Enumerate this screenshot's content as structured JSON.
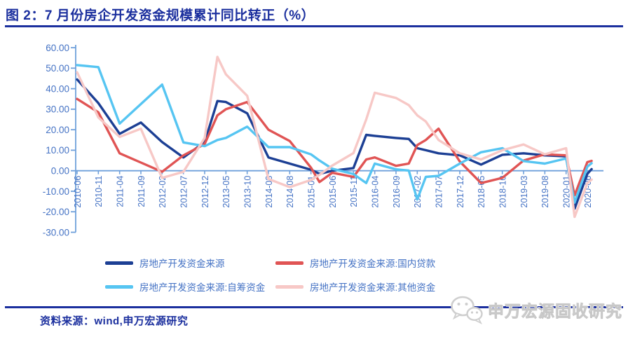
{
  "title": "图 2：7 月份房企开发资金规模累计同比转正（%）",
  "source_note": "资料来源：wind,申万宏源研究",
  "watermark_text": "申万宏源固收研究",
  "colors": {
    "navy_accent": "#1B2F9E",
    "axis_label_blue": "#4472C4",
    "axis_line_blue": "#6FA0DB",
    "watermark_gray": "#DADADA"
  },
  "chart_data": {
    "type": "line",
    "title": "7 月份房企开发资金规模累计同比转正（%）",
    "xlabel": "",
    "ylabel": "",
    "ylim": [
      -30,
      60
    ],
    "grid": false,
    "legend_position": "bottom",
    "y_ticks": [
      "60.00",
      "50.00",
      "40.00",
      "30.00",
      "20.00",
      "10.00",
      "0.00",
      "-10.00",
      "-20.00",
      "-30.00"
    ],
    "x_ticks": [
      "2010-06",
      "2010-11",
      "2011-04",
      "2011-09",
      "2012-02",
      "2012-07",
      "2012-12",
      "2013-05",
      "2013-10",
      "2014-03",
      "2014-08",
      "2015-01",
      "2015-06",
      "2015-11",
      "2016-04",
      "2016-09",
      "2017-02",
      "2017-07",
      "2017-12",
      "2018-05",
      "2018-10",
      "2019-03",
      "2019-08",
      "2020-01",
      "2020-06"
    ],
    "x": [
      "2010-06",
      "2010-11",
      "2011-04",
      "2011-09",
      "2012-02",
      "2012-07",
      "2012-12",
      "2013-03",
      "2013-05",
      "2013-10",
      "2014-03",
      "2014-08",
      "2015-01",
      "2015-03",
      "2015-06",
      "2015-11",
      "2016-02",
      "2016-04",
      "2016-09",
      "2016-12",
      "2017-02",
      "2017-04",
      "2017-07",
      "2017-12",
      "2018-05",
      "2018-10",
      "2019-03",
      "2019-08",
      "2020-01",
      "2020-03",
      "2020-06",
      "2020-07"
    ],
    "series": [
      {
        "name": "房地产开发资金来源",
        "color": "#1C3F94",
        "values": [
          44.5,
          33,
          18,
          23.5,
          14,
          6.5,
          14,
          34,
          33.5,
          28,
          6.5,
          3.5,
          0.5,
          -1.5,
          0,
          1.3,
          17.5,
          17,
          16,
          15.5,
          11,
          10,
          8.5,
          7.5,
          3,
          7.8,
          8.5,
          7.5,
          7,
          -18.5,
          -1.5,
          0.8
        ]
      },
      {
        "name": "房地产开发资金来源:国内贷款",
        "color": "#E05454",
        "values": [
          35,
          28.5,
          8.5,
          4,
          -0.5,
          7.5,
          13,
          27,
          30,
          33.5,
          20,
          14.5,
          1.5,
          -5.5,
          -1,
          -3,
          5.5,
          6.5,
          2.4,
          3.5,
          12.5,
          15,
          20.5,
          4.5,
          -6,
          -3.5,
          5,
          8,
          7.5,
          -12,
          4.2,
          4.8
        ]
      },
      {
        "name": "房地产开发资金来源:自筹资金",
        "color": "#56C5F2",
        "values": [
          51.5,
          50.5,
          23,
          32.5,
          42,
          13.8,
          12,
          15,
          16,
          21.5,
          11.5,
          11.5,
          8,
          5,
          1,
          -1.6,
          -6,
          3.5,
          0.7,
          0.1,
          -14,
          -3,
          -2.5,
          3.5,
          9,
          11,
          4.7,
          3.5,
          6,
          -15.5,
          2,
          3.7
        ]
      },
      {
        "name": "房地产开发资金来源:其他资金",
        "color": "#F7C8C6",
        "values": [
          48,
          26,
          16.5,
          20.5,
          -3.5,
          -0.5,
          16,
          55.5,
          47,
          36.5,
          -4,
          -8,
          -4.5,
          -2,
          2.5,
          8.6,
          25,
          38,
          35.5,
          32,
          27,
          24,
          15,
          8.5,
          5.5,
          10,
          12.8,
          8,
          11,
          -22.5,
          -6,
          -4.3
        ]
      }
    ]
  }
}
